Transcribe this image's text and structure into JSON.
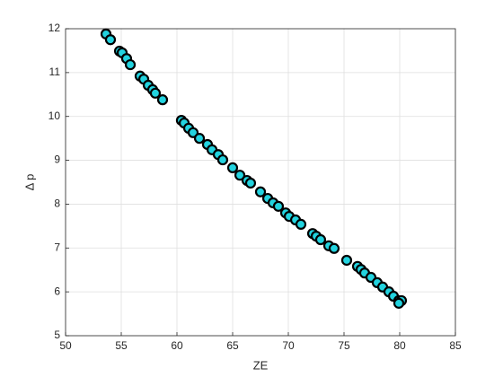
{
  "chart_data": {
    "type": "scatter",
    "xlabel": "ZE",
    "ylabel": "Δ p",
    "xlim": [
      50,
      85
    ],
    "ylim": [
      5,
      12
    ],
    "xticks": [
      50,
      55,
      60,
      65,
      70,
      75,
      80,
      85
    ],
    "yticks": [
      5,
      6,
      7,
      8,
      9,
      10,
      11,
      12
    ],
    "grid": true,
    "color": "#22d3df",
    "edgecolor": "#000000",
    "x": [
      53.63,
      54.03,
      54.84,
      55.08,
      55.48,
      55.81,
      56.69,
      57.02,
      57.42,
      57.82,
      58.06,
      58.71,
      60.4,
      60.65,
      61.05,
      61.45,
      62.02,
      62.74,
      63.15,
      63.71,
      64.11,
      65.0,
      65.65,
      66.29,
      66.61,
      67.5,
      68.15,
      68.63,
      69.11,
      69.76,
      70.08,
      70.65,
      71.13,
      72.18,
      72.5,
      72.9,
      73.63,
      74.11,
      75.24,
      76.21,
      76.53,
      76.85,
      77.42,
      77.98,
      78.47,
      79.03,
      79.44,
      79.92,
      80.16,
      79.92
    ],
    "values": [
      11.88,
      11.75,
      11.49,
      11.45,
      11.32,
      11.18,
      10.92,
      10.85,
      10.71,
      10.61,
      10.53,
      10.38,
      9.91,
      9.85,
      9.73,
      9.63,
      9.5,
      9.36,
      9.24,
      9.13,
      9.01,
      8.83,
      8.66,
      8.54,
      8.48,
      8.28,
      8.13,
      8.03,
      7.95,
      7.8,
      7.72,
      7.64,
      7.54,
      7.33,
      7.27,
      7.19,
      7.05,
      6.99,
      6.72,
      6.58,
      6.51,
      6.43,
      6.33,
      6.21,
      6.11,
      6.0,
      5.9,
      5.8,
      5.8,
      5.74
    ]
  }
}
